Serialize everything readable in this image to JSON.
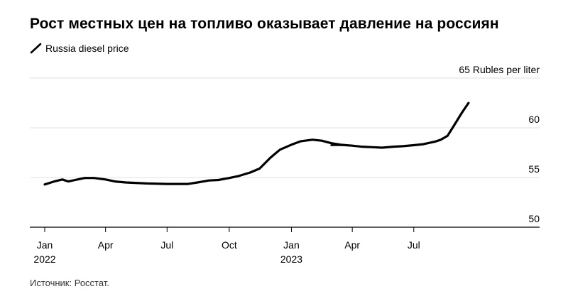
{
  "title": "Рост местных цен на топливо оказывает давление на россиян",
  "source": "Источник: Росстат.",
  "legend": {
    "label": "Russia diesel price",
    "icon": "line-swatch-icon",
    "placement": "top-left"
  },
  "colors": {
    "line": "#000000",
    "grid": "#e0e0e0",
    "axis": "#000000"
  },
  "chart_data": {
    "type": "line",
    "title": "Рост местных цен на топливо оказывает давление на россиян",
    "unit_label": "65 Rubles per liter",
    "ylim": [
      50,
      65
    ],
    "yticks": [
      {
        "value": 65,
        "label": "65 Rubles per liter"
      },
      {
        "value": 60,
        "label": "60"
      },
      {
        "value": 55,
        "label": "55"
      },
      {
        "value": 50,
        "label": "50"
      }
    ],
    "xlim": [
      "2022-01-01",
      "2023-12-31"
    ],
    "xticks": [
      {
        "date": "2022-01-01",
        "label": "Jan",
        "year": "2022"
      },
      {
        "date": "2022-04-01",
        "label": "Apr",
        "year": ""
      },
      {
        "date": "2022-07-01",
        "label": "Jul",
        "year": ""
      },
      {
        "date": "2022-10-01",
        "label": "Oct",
        "year": ""
      },
      {
        "date": "2023-01-01",
        "label": "Jan",
        "year": "2023"
      },
      {
        "date": "2023-04-01",
        "label": "Apr",
        "year": ""
      },
      {
        "date": "2023-07-01",
        "label": "Jul",
        "year": ""
      }
    ],
    "grid": true,
    "series": [
      {
        "name": "Russia diesel price",
        "points": [
          [
            "2022-01-01",
            54.3
          ],
          [
            "2022-01-15",
            54.6
          ],
          [
            "2022-01-27",
            54.8
          ],
          [
            "2022-02-05",
            54.6
          ],
          [
            "2022-02-15",
            54.75
          ],
          [
            "2022-03-01",
            54.95
          ],
          [
            "2022-03-15",
            54.95
          ],
          [
            "2022-04-01",
            54.8
          ],
          [
            "2022-04-15",
            54.6
          ],
          [
            "2022-05-01",
            54.5
          ],
          [
            "2022-06-01",
            54.4
          ],
          [
            "2022-07-01",
            54.35
          ],
          [
            "2022-07-15",
            54.35
          ],
          [
            "2022-08-01",
            54.35
          ],
          [
            "2022-08-15",
            54.5
          ],
          [
            "2022-09-01",
            54.7
          ],
          [
            "2022-09-15",
            54.75
          ],
          [
            "2022-10-01",
            54.95
          ],
          [
            "2022-10-15",
            55.15
          ],
          [
            "2022-11-01",
            55.5
          ],
          [
            "2022-11-15",
            55.9
          ],
          [
            "2022-12-01",
            57.0
          ],
          [
            "2022-12-15",
            57.8
          ],
          [
            "2023-01-01",
            58.3
          ],
          [
            "2023-01-15",
            58.65
          ],
          [
            "2023-02-01",
            58.8
          ],
          [
            "2023-02-15",
            58.7
          ],
          [
            "2023-03-01",
            58.45
          ],
          [
            "2023-03-15",
            58.3
          ],
          [
            "2023-04-01",
            58.2
          ],
          [
            "2023-04-15",
            58.1
          ],
          [
            "2023-05-01",
            58.05
          ],
          [
            "2023-05-15",
            58.0
          ],
          [
            "2023-06-01",
            58.1
          ],
          [
            "2023-06-15",
            58.15
          ],
          [
            "2023-07-01",
            58.25
          ],
          [
            "2023-07-15",
            58.35
          ],
          [
            "2023-08-01",
            58.6
          ],
          [
            "2023-08-10",
            58.8
          ],
          [
            "2023-08-20",
            59.2
          ],
          [
            "2023-09-01",
            60.5
          ],
          [
            "2023-09-10",
            61.5
          ],
          [
            "2023-09-20",
            62.5
          ]
        ]
      },
      {
        "name": "",
        "points": [
          [
            "2023-03-01",
            58.25
          ],
          [
            "2023-03-15",
            58.25
          ],
          [
            "2023-04-01",
            58.2
          ]
        ]
      }
    ]
  }
}
